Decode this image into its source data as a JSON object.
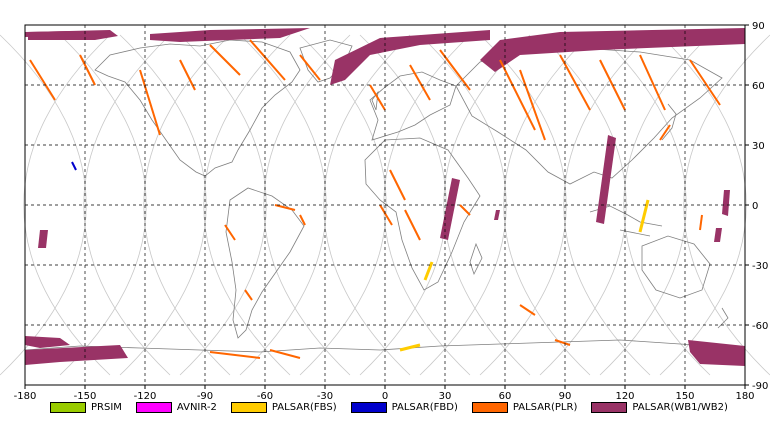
{
  "map": {
    "lon_ticks": [
      "-180",
      "-150",
      "-120",
      "-90",
      "-60",
      "-30",
      "0",
      "30",
      "60",
      "90",
      "120",
      "150",
      "180"
    ],
    "lat_ticks": [
      "90",
      "60",
      "30",
      "0",
      "-30",
      "-60",
      "-90"
    ],
    "grid": "dashed",
    "projection": "equirectangular"
  },
  "legend": [
    {
      "label": "PRSIM",
      "color": "#99cc00"
    },
    {
      "label": "AVNIR-2",
      "color": "#ff00ff"
    },
    {
      "label": "PALSAR(FBS)",
      "color": "#ffcc00"
    },
    {
      "label": "PALSAR(FBD)",
      "color": "#0000cc"
    },
    {
      "label": "PALSAR(PLR)",
      "color": "#ff6600"
    },
    {
      "label": "PALSAR(WB1/WB2)",
      "color": "#993366"
    }
  ]
}
